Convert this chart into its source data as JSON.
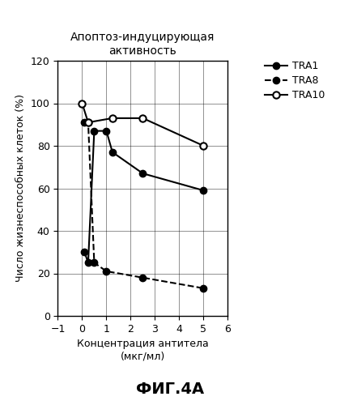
{
  "title": "Апоптоз-индуцирующая\nактивность",
  "xlabel": "Концентрация антитела\n(мкг/мл)",
  "ylabel": "Число жизнеспособных клеток (%)",
  "figcaption": "ФИГ.4А",
  "xlim": [
    -1,
    6
  ],
  "ylim": [
    0,
    120
  ],
  "xticks": [
    -1,
    0,
    1,
    2,
    3,
    4,
    5,
    6
  ],
  "yticks": [
    0,
    20,
    40,
    60,
    80,
    100,
    120
  ],
  "TRA1_x": [
    0.1,
    0.25,
    0.5,
    1.0,
    1.25,
    2.5,
    5.0
  ],
  "TRA1_y": [
    30,
    25,
    87,
    87,
    77,
    67,
    59
  ],
  "TRA8_x": [
    0.1,
    0.25,
    0.5,
    1.0,
    2.5,
    5.0
  ],
  "TRA8_y": [
    91,
    91,
    25,
    21,
    18,
    13
  ],
  "TRA10_x": [
    0.0,
    0.25,
    1.25,
    2.5,
    5.0
  ],
  "TRA10_y": [
    100,
    91,
    93,
    93,
    80
  ],
  "legend_labels": [
    "TRA1",
    "TRA8",
    "TRA10"
  ],
  "background_color": "#ffffff",
  "line_color": "#000000",
  "title_fontsize": 10,
  "axis_label_fontsize": 9,
  "tick_fontsize": 9,
  "legend_fontsize": 9,
  "caption_fontsize": 14
}
